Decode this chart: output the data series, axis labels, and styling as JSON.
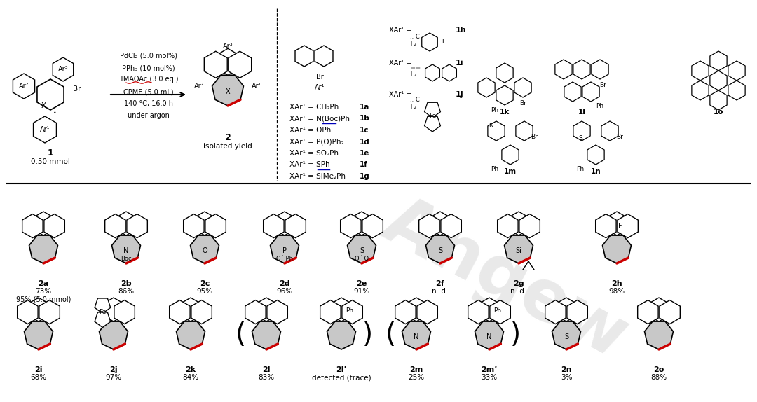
{
  "bg_color": "#ffffff",
  "fig_width": 10.8,
  "fig_height": 5.74,
  "dpi": 100,
  "red_color": "#cc0000",
  "gray_fill": "#c8c8c8",
  "black": "#000000",
  "blue_color": "#0000bb",
  "reaction_conditions": [
    "PdCl₂ (5.0 mol%)",
    "PPh₃ (10 mol%)",
    "TMAOAc (3.0 eq.)",
    "CPME (5.0 mL)",
    "140 °C, 16.0 h",
    "under argon"
  ],
  "xar_list": [
    {
      "formula": "XAr¹ = CH₂Ph",
      "label": "1a"
    },
    {
      "formula": "XAr¹ = N(Boc)Ph",
      "label": "1b",
      "underline": [
        43,
        63
      ]
    },
    {
      "formula": "XAr¹ = OPh",
      "label": "1c"
    },
    {
      "formula": "XAr¹ = P(O)Ph₂",
      "label": "1d"
    },
    {
      "formula": "XAr¹ = SO₂Ph",
      "label": "1e"
    },
    {
      "formula": "XAr¹ = SPh",
      "label": "1f",
      "underline": [
        43,
        56
      ]
    },
    {
      "formula": "XAr¹ = SiMe₂Ph",
      "label": "1g"
    }
  ],
  "row2_compounds": [
    {
      "label": "2a",
      "yield1": "73%",
      "yield2": "95% (5.0 mmol)",
      "hetero": null,
      "fluorine": false
    },
    {
      "label": "2b",
      "yield1": "86%",
      "yield2": null,
      "hetero": "N",
      "hetero2": "Boc",
      "fluorine": false
    },
    {
      "label": "2c",
      "yield1": "95%",
      "yield2": null,
      "hetero": "O",
      "fluorine": false
    },
    {
      "label": "2d",
      "yield1": "96%",
      "yield2": null,
      "hetero": "P",
      "hetero2": "O´ Ph",
      "fluorine": false
    },
    {
      "label": "2e",
      "yield1": "91%",
      "yield2": null,
      "hetero": "S",
      "hetero2": "O´ O",
      "fluorine": false
    },
    {
      "label": "2f",
      "yield1": "n. d.",
      "yield2": null,
      "hetero": "S",
      "fluorine": false
    },
    {
      "label": "2g",
      "yield1": "n. d.",
      "yield2": null,
      "hetero": "Si",
      "fluorine": false,
      "si_lines": true
    },
    {
      "label": "2h",
      "yield1": "98%",
      "yield2": null,
      "hetero": null,
      "fluorine": true
    }
  ],
  "row3_compounds": [
    {
      "label": "2i",
      "yield1": "68%",
      "hetero": null,
      "bracket": false
    },
    {
      "label": "2j",
      "yield1": "97%",
      "hetero": null,
      "bracket": false,
      "ferrocene": true
    },
    {
      "label": "2k",
      "yield1": "84%",
      "hetero": null,
      "bracket": false
    },
    {
      "label": "2l",
      "yield1": "83%",
      "hetero": null,
      "bracket": true
    },
    {
      "label": "2l’",
      "yield1": "detected (trace)",
      "hetero": null,
      "bracket": true,
      "ph_sub": true
    },
    {
      "label": "2m",
      "yield1": "25%",
      "hetero": "N",
      "bracket": false
    },
    {
      "label": "2m’",
      "yield1": "33%",
      "hetero": "N",
      "bracket": true,
      "ph_sub": true
    },
    {
      "label": "2n",
      "yield1": "3%",
      "hetero": "S",
      "bracket": false
    },
    {
      "label": "2o",
      "yield1": "88%",
      "hetero": null,
      "bracket": false
    }
  ]
}
